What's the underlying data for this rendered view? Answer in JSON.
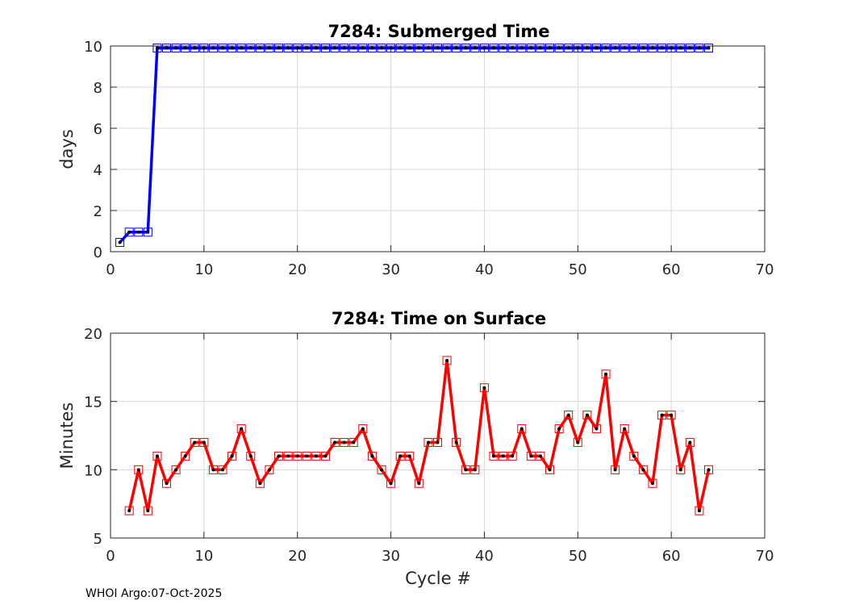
{
  "chart_data": [
    {
      "type": "line",
      "title": "7284: Submerged Time",
      "xlabel": "",
      "ylabel": "days",
      "xlim": [
        0,
        70
      ],
      "ylim": [
        0,
        10
      ],
      "xticks": [
        0,
        10,
        20,
        30,
        40,
        50,
        60,
        70
      ],
      "yticks": [
        0,
        2,
        4,
        6,
        8,
        10
      ],
      "grid": true,
      "color": "#0000ff",
      "marker": "square",
      "x": [
        1,
        2,
        3,
        4,
        5,
        6,
        7,
        8,
        9,
        10,
        11,
        12,
        13,
        14,
        15,
        16,
        17,
        18,
        19,
        20,
        21,
        22,
        23,
        24,
        25,
        26,
        27,
        28,
        29,
        30,
        31,
        32,
        33,
        34,
        35,
        36,
        37,
        38,
        39,
        40,
        41,
        42,
        43,
        44,
        45,
        46,
        47,
        48,
        49,
        50,
        51,
        52,
        53,
        54,
        55,
        56,
        57,
        58,
        59,
        60,
        61,
        62,
        63,
        64
      ],
      "y": [
        0.45,
        0.95,
        0.95,
        0.95,
        9.9,
        9.9,
        9.9,
        9.9,
        9.9,
        9.9,
        9.9,
        9.9,
        9.9,
        9.9,
        9.9,
        9.9,
        9.9,
        9.9,
        9.9,
        9.9,
        9.9,
        9.9,
        9.9,
        9.9,
        9.9,
        9.9,
        9.9,
        9.9,
        9.9,
        9.9,
        9.9,
        9.9,
        9.9,
        9.9,
        9.9,
        9.9,
        9.9,
        9.9,
        9.9,
        9.9,
        9.9,
        9.9,
        9.9,
        9.9,
        9.9,
        9.9,
        9.9,
        9.9,
        9.9,
        9.9,
        9.9,
        9.9,
        9.9,
        9.9,
        9.9,
        9.9,
        9.9,
        9.9,
        9.9,
        9.9,
        9.9,
        9.9,
        9.9,
        9.9
      ]
    },
    {
      "type": "line",
      "title": "7284: Time on Surface",
      "xlabel": "Cycle #",
      "ylabel": "Minutes",
      "xlim": [
        0,
        70
      ],
      "ylim": [
        5,
        20
      ],
      "xticks": [
        0,
        10,
        20,
        30,
        40,
        50,
        60,
        70
      ],
      "yticks": [
        5,
        10,
        15,
        20
      ],
      "grid": true,
      "color": "#ff0000",
      "marker": "square",
      "x": [
        2,
        3,
        4,
        5,
        6,
        7,
        8,
        9,
        10,
        11,
        12,
        13,
        14,
        15,
        16,
        17,
        18,
        19,
        20,
        21,
        22,
        23,
        24,
        25,
        26,
        27,
        28,
        29,
        30,
        31,
        32,
        33,
        34,
        35,
        36,
        37,
        38,
        39,
        40,
        41,
        42,
        43,
        44,
        45,
        46,
        47,
        48,
        49,
        50,
        51,
        52,
        53,
        54,
        55,
        56,
        57,
        58,
        59,
        60,
        61,
        62,
        63,
        64
      ],
      "y": [
        7,
        10,
        7,
        11,
        9,
        10,
        11,
        12,
        12,
        10,
        10,
        11,
        13,
        11,
        9,
        10,
        11,
        11,
        11,
        11,
        11,
        11,
        12,
        12,
        12,
        13,
        11,
        10,
        9,
        11,
        11,
        9,
        12,
        12,
        18,
        12,
        10,
        10,
        16,
        11,
        11,
        11,
        13,
        11,
        11,
        10,
        13,
        14,
        12,
        14,
        13,
        17,
        10,
        13,
        11,
        10,
        9,
        14,
        14,
        10,
        12,
        7,
        10
      ]
    }
  ],
  "footer": "WHOI Argo:07-Oct-2025"
}
